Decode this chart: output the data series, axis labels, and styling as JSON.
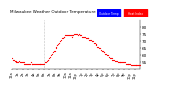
{
  "bg_color": "#ffffff",
  "plot_bg": "#ffffff",
  "legend_color_temp": "#0000ff",
  "legend_color_hi": "#ff0000",
  "legend_label_temp": "Outdoor Temp",
  "legend_label_hi": "Heat Index",
  "dot_color": "#ff0000",
  "dot_size": 0.8,
  "ylim": [
    50,
    85
  ],
  "xlim": [
    0,
    1440
  ],
  "yticks": [
    55,
    60,
    65,
    70,
    75,
    80
  ],
  "xtick_positions": [
    0,
    60,
    120,
    180,
    240,
    300,
    360,
    420,
    480,
    540,
    600,
    660,
    720,
    780,
    840,
    900,
    960,
    1020,
    1080,
    1140,
    1200,
    1260,
    1320,
    1380
  ],
  "xtick_labels": [
    "12a",
    "1a",
    "2a",
    "3a",
    "4a",
    "5a",
    "6a",
    "7a",
    "8a",
    "9a",
    "10a",
    "11a",
    "12p",
    "1p",
    "2p",
    "3p",
    "4p",
    "5p",
    "6p",
    "7p",
    "8p",
    "9p",
    "10p",
    "11p"
  ],
  "midnight_line_x": 360,
  "title_left": "Milwaukee Weather Outdoor Temperature",
  "title_fontsize": 3.0,
  "data_x": [
    0,
    10,
    20,
    30,
    40,
    50,
    60,
    70,
    80,
    90,
    100,
    110,
    120,
    130,
    140,
    150,
    160,
    170,
    180,
    190,
    200,
    210,
    220,
    230,
    240,
    250,
    260,
    270,
    280,
    290,
    300,
    310,
    320,
    330,
    340,
    350,
    360,
    370,
    380,
    390,
    400,
    410,
    420,
    430,
    440,
    450,
    460,
    470,
    480,
    490,
    500,
    510,
    520,
    530,
    540,
    550,
    560,
    570,
    580,
    590,
    600,
    610,
    620,
    630,
    640,
    650,
    660,
    670,
    680,
    690,
    700,
    710,
    720,
    730,
    740,
    750,
    760,
    770,
    780,
    790,
    800,
    810,
    820,
    830,
    840,
    850,
    860,
    870,
    880,
    890,
    900,
    910,
    920,
    930,
    940,
    950,
    960,
    970,
    980,
    990,
    1000,
    1010,
    1020,
    1030,
    1040,
    1050,
    1060,
    1070,
    1080,
    1090,
    1100,
    1110,
    1120,
    1130,
    1140,
    1150,
    1160,
    1170,
    1180,
    1190,
    1200,
    1210,
    1220,
    1230,
    1240,
    1250,
    1260,
    1270,
    1280,
    1290,
    1300,
    1310,
    1320,
    1330,
    1340,
    1350,
    1360,
    1370,
    1380,
    1390,
    1400,
    1410,
    1420,
    1430,
    1440
  ],
  "data_y": [
    58,
    57,
    57,
    56,
    56,
    55,
    55,
    55,
    56,
    55,
    55,
    55,
    55,
    55,
    54,
    54,
    54,
    54,
    54,
    54,
    54,
    55,
    54,
    54,
    54,
    54,
    54,
    54,
    54,
    54,
    54,
    54,
    54,
    54,
    54,
    54,
    54,
    55,
    55,
    56,
    57,
    57,
    58,
    59,
    60,
    61,
    62,
    63,
    63,
    65,
    66,
    67,
    68,
    69,
    70,
    71,
    72,
    72,
    73,
    73,
    74,
    74,
    74,
    74,
    74,
    74,
    74,
    73,
    74,
    74,
    75,
    75,
    75,
    75,
    74,
    75,
    74,
    74,
    74,
    73,
    73,
    73,
    73,
    72,
    72,
    72,
    72,
    71,
    71,
    71,
    70,
    70,
    69,
    69,
    68,
    67,
    66,
    66,
    65,
    65,
    64,
    63,
    63,
    62,
    62,
    61,
    61,
    60,
    60,
    59,
    58,
    58,
    58,
    57,
    57,
    57,
    56,
    56,
    56,
    55,
    55,
    55,
    55,
    55,
    55,
    55,
    55,
    55,
    54,
    54,
    54,
    54,
    54,
    54,
    53,
    53,
    53,
    53,
    53,
    53,
    53,
    53,
    53,
    53,
    53
  ]
}
